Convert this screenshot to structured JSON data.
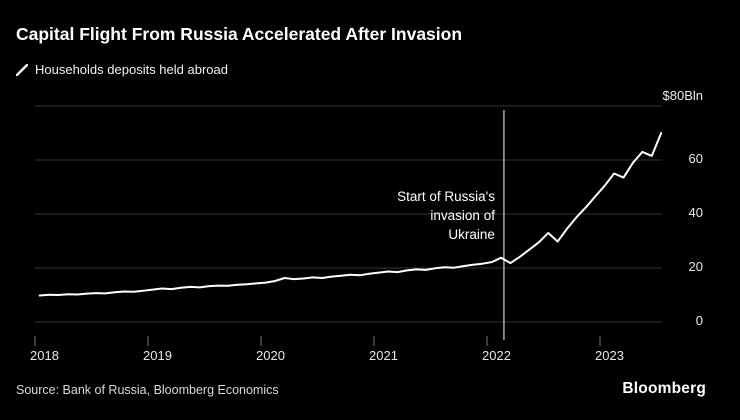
{
  "header": {
    "title": "Capital Flight From Russia Accelerated After Invasion",
    "legend_label": "Households deposits held abroad"
  },
  "annotation": {
    "line1": "Start of Russia's",
    "line2": "invasion of",
    "line3": "Ukraine"
  },
  "footer": {
    "source": "Source: Bank of Russia, Bloomberg Economics",
    "brand": "Bloomberg"
  },
  "colors": {
    "background": "#000000",
    "line": "#ffffff",
    "grid": "#333333",
    "tick": "#777777",
    "annotation_line": "#ffffff"
  },
  "chart_data": {
    "type": "line",
    "title": "Capital Flight From Russia Accelerated After Invasion",
    "y_unit": "$Bln",
    "x_start": "2018-01",
    "x_frequency": "monthly",
    "x_tick_labels": [
      "2018",
      "2019",
      "2020",
      "2021",
      "2022",
      "2023"
    ],
    "y_ticks": [
      0,
      20,
      40,
      60,
      80
    ],
    "y_tick_labels": [
      "0",
      "20",
      "40",
      "60",
      "$80Bln"
    ],
    "ylim": [
      0,
      80
    ],
    "grid": "horizontal",
    "legend_position": "top-left",
    "annotation": {
      "label": "Start of Russia's invasion of Ukraine",
      "x_year": 2022.15
    },
    "series": [
      {
        "name": "Households deposits held abroad",
        "values": [
          9.8,
          10.1,
          10.0,
          10.3,
          10.2,
          10.5,
          10.7,
          10.6,
          11.0,
          11.3,
          11.2,
          11.6,
          12.0,
          12.4,
          12.2,
          12.7,
          13.0,
          12.8,
          13.3,
          13.5,
          13.4,
          13.8,
          14.0,
          14.3,
          14.6,
          15.2,
          16.3,
          15.9,
          16.1,
          16.5,
          16.3,
          16.8,
          17.1,
          17.5,
          17.3,
          17.9,
          18.3,
          18.7,
          18.5,
          19.1,
          19.5,
          19.3,
          19.9,
          20.3,
          20.1,
          20.7,
          21.2,
          21.6,
          22.2,
          23.8,
          21.8,
          24.2,
          26.8,
          29.5,
          33.0,
          29.8,
          34.5,
          38.8,
          42.5,
          46.5,
          50.5,
          55.0,
          53.5,
          59.0,
          63.0,
          61.5,
          70.0
        ]
      }
    ]
  }
}
